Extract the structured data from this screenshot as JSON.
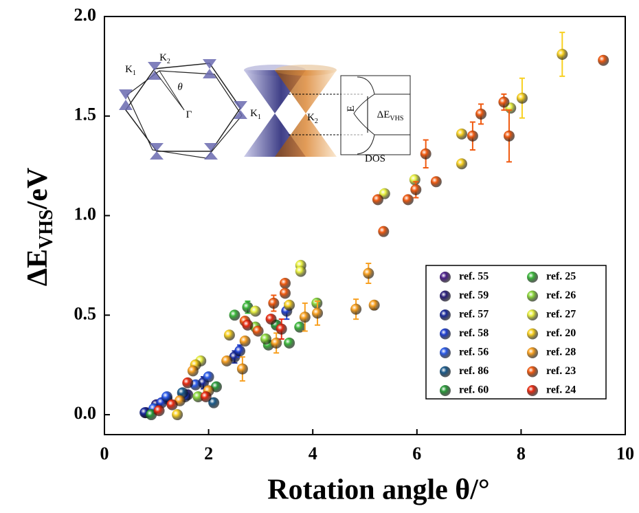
{
  "chart_data": {
    "type": "scatter",
    "x_label": "Rotation angle θ/°",
    "y_label": [
      "ΔE",
      "VHS",
      "/eV"
    ],
    "xlim": [
      0,
      10
    ],
    "xticks": [
      0,
      2,
      4,
      6,
      8,
      10
    ],
    "ylim": [
      -0.1,
      2.0
    ],
    "yticks": [
      {
        "value": 0,
        "label": "0.0"
      },
      0.5,
      {
        "value": 1,
        "label": "1.0"
      },
      1.5,
      {
        "value": 2,
        "label": "2.0"
      }
    ],
    "inset_labels": [
      [
        "K",
        "1"
      ],
      [
        "K",
        "2"
      ],
      [
        "θ"
      ],
      [
        "Γ"
      ],
      [
        "K",
        "1"
      ],
      [
        "K",
        "2"
      ],
      [
        "E"
      ],
      [
        "ΔE",
        "VHS"
      ],
      [
        "DOS"
      ]
    ],
    "series": [
      {
        "name": "ref. 55",
        "color": "#4b1f8a",
        "x": [
          0.8
        ],
        "values": [
          0.01
        ],
        "errors": [
          null
        ]
      },
      {
        "name": "ref. 59",
        "color": "#2a1f7a",
        "x": [
          1.0,
          1.6
        ],
        "values": [
          0.05,
          0.1
        ],
        "errors": [
          null,
          null
        ]
      },
      {
        "name": "ref. 57",
        "color": "#1a2a9a",
        "x": [
          0.78,
          1.2,
          1.9,
          2.5
        ],
        "values": [
          0.01,
          0.08,
          0.16,
          0.29
        ],
        "errors": [
          null,
          null,
          0.03,
          0.03
        ]
      },
      {
        "name": "ref. 58",
        "color": "#1f3fd0",
        "x": [
          1.1,
          1.55,
          2.6,
          3.5
        ],
        "values": [
          0.06,
          0.09,
          0.32,
          0.52
        ],
        "errors": [
          null,
          null,
          0.03,
          0.04
        ]
      },
      {
        "name": "ref. 56",
        "color": "#2a5ae8",
        "x": [
          0.95,
          1.2,
          1.75,
          2.0
        ],
        "values": [
          0.03,
          0.09,
          0.15,
          0.19
        ],
        "errors": [
          null,
          null,
          null,
          null
        ]
      },
      {
        "name": "ref. 86",
        "color": "#1a5a8a",
        "x": [
          2.1,
          1.5
        ],
        "values": [
          0.06,
          0.11
        ],
        "errors": [
          null,
          null
        ]
      },
      {
        "name": "ref. 60",
        "color": "#2a9a3a",
        "x": [
          0.9,
          2.15,
          3.3
        ],
        "values": [
          0.0,
          0.14,
          0.45
        ],
        "errors": [
          null,
          null,
          null
        ]
      },
      {
        "name": "ref. 25",
        "color": "#3cb83c",
        "x": [
          2.5,
          2.75,
          3.15,
          3.55,
          3.75
        ],
        "values": [
          0.5,
          0.54,
          0.35,
          0.36,
          0.44
        ],
        "errors": [
          null,
          0.03,
          null,
          null,
          null
        ]
      },
      {
        "name": "ref. 26",
        "color": "#8cd83c",
        "x": [
          4.08,
          3.1,
          2.9,
          1.8
        ],
        "values": [
          0.56,
          0.38,
          0.44,
          0.09
        ],
        "errors": [
          null,
          null,
          null,
          null
        ]
      },
      {
        "name": "ref. 27",
        "color": "#e8f040",
        "x": [
          5.38,
          5.96,
          3.77,
          3.77,
          2.9,
          1.85,
          7.8
        ],
        "values": [
          1.11,
          1.18,
          0.75,
          0.72,
          0.52,
          0.27,
          1.54
        ],
        "errors": [
          null,
          null,
          null,
          null,
          null,
          null,
          null
        ]
      },
      {
        "name": "ref. 20",
        "color": "#f8d020",
        "x": [
          8.79,
          8.02,
          6.86,
          6.86,
          3.55,
          2.4,
          1.4,
          1.75
        ],
        "values": [
          1.81,
          1.59,
          1.41,
          1.26,
          0.55,
          0.4,
          0.0,
          0.25
        ],
        "errors": [
          0.11,
          0.1,
          null,
          null,
          null,
          null,
          null,
          null
        ]
      },
      {
        "name": "ref. 28",
        "color": "#f8a020",
        "x": [
          5.18,
          5.07,
          4.83,
          4.09,
          3.85,
          3.3,
          2.65,
          2.35,
          1.7,
          2.0,
          1.45,
          2.7
        ],
        "values": [
          0.55,
          0.71,
          0.53,
          0.51,
          0.49,
          0.36,
          0.23,
          0.27,
          0.22,
          0.12,
          0.07,
          0.37
        ],
        "errors": [
          0.02,
          0.05,
          0.05,
          0.06,
          0.07,
          0.05,
          0.06,
          null,
          null,
          null,
          null,
          null
        ]
      },
      {
        "name": "ref. 23",
        "color": "#f05a10",
        "x": [
          9.58,
          7.77,
          7.67,
          7.23,
          7.07,
          6.37,
          6.17,
          5.98,
          5.83,
          5.25,
          5.36,
          3.47,
          3.47,
          3.25,
          2.95,
          2.7
        ],
        "values": [
          1.78,
          1.4,
          1.57,
          1.51,
          1.4,
          1.17,
          1.31,
          1.13,
          1.08,
          1.08,
          0.92,
          0.66,
          0.61,
          0.56,
          0.42,
          0.47
        ],
        "errors": [
          null,
          0.13,
          0.04,
          0.05,
          0.07,
          null,
          0.07,
          0.04,
          null,
          null,
          null,
          null,
          null,
          0.04,
          null,
          null
        ]
      },
      {
        "name": "ref. 24",
        "color": "#e82a10",
        "x": [
          3.4,
          3.2,
          2.75,
          1.6,
          1.95,
          1.3,
          1.05
        ],
        "values": [
          0.43,
          0.48,
          0.45,
          0.16,
          0.09,
          0.05,
          0.02
        ],
        "errors": [
          0.05,
          null,
          null,
          null,
          null,
          null,
          null
        ]
      }
    ]
  }
}
